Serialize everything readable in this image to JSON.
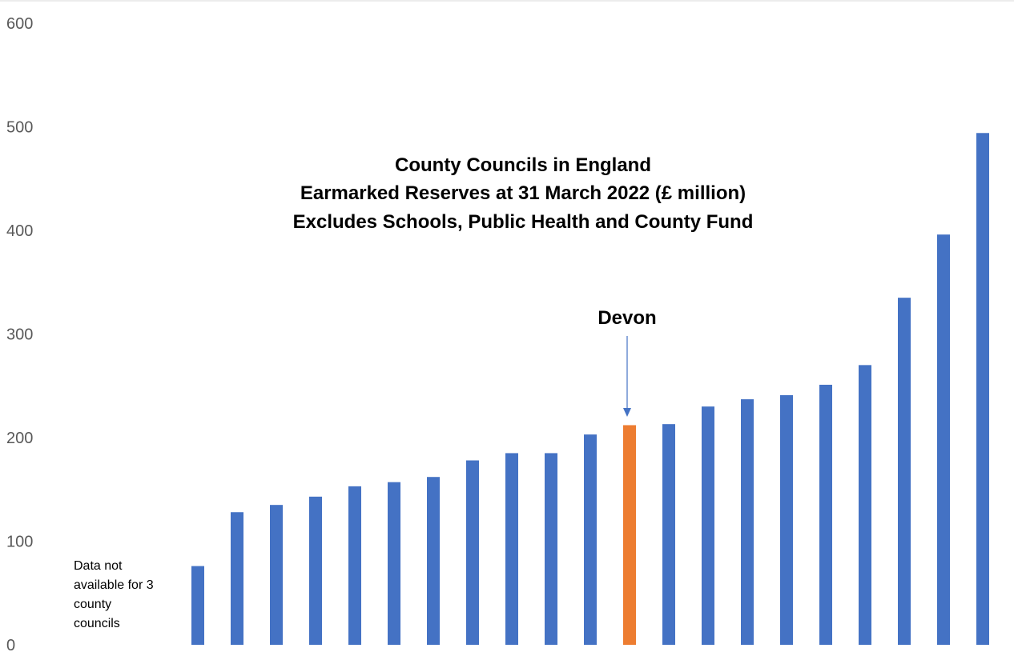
{
  "chart_data": {
    "type": "bar",
    "title": [
      "County Councils in England",
      "Earmarked Reserves at 31 March 2022 (£ million)",
      "Excludes Schools, Public Health and County Fund"
    ],
    "xlabel": "",
    "ylabel": "",
    "ylim": [
      0,
      600
    ],
    "yticks": [
      "0",
      "100",
      "200",
      "300",
      "400",
      "500",
      "600"
    ],
    "grid": false,
    "legend": "none",
    "values": [
      76,
      128,
      135,
      143,
      153,
      157,
      162,
      178,
      185,
      185,
      203,
      212,
      213,
      230,
      237,
      241,
      251,
      270,
      335,
      396,
      494
    ],
    "highlight_index": 11,
    "bar_color": "#4472C4",
    "highlight_color": "#ED7D31",
    "annotations": {
      "highlight_label": "Devon",
      "note": [
        "Data not",
        "available for 3",
        "county",
        "councils"
      ]
    }
  }
}
